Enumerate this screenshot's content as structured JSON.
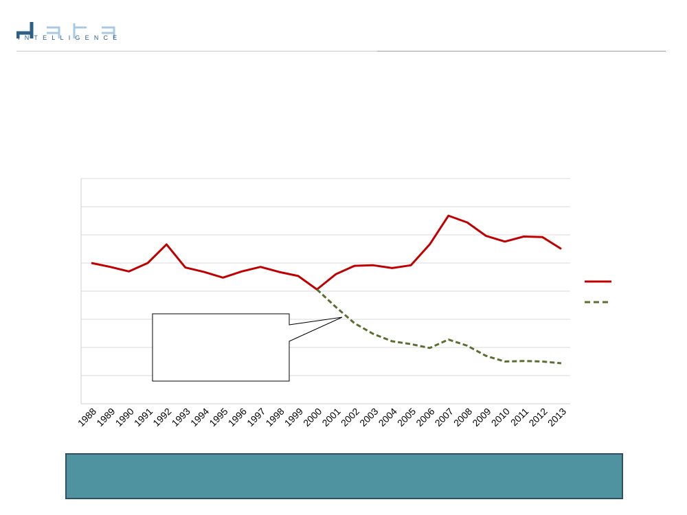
{
  "brand": {
    "logo_word": "data",
    "logo_tagline": "INTELLIGENCE",
    "colors": {
      "dark": "#2b5f86",
      "light": "#a9c9e0"
    }
  },
  "chart_data": {
    "type": "line",
    "title": "",
    "xlabel": "",
    "ylabel": "",
    "ylim": [
      0,
      8
    ],
    "gridlines": [
      1,
      2,
      3,
      4,
      5,
      6,
      7,
      8
    ],
    "grid": true,
    "legend_position": "right",
    "categories": [
      "1988",
      "1989",
      "1990",
      "1991",
      "1992",
      "1993",
      "1994",
      "1995",
      "1996",
      "1997",
      "1998",
      "1999",
      "2000",
      "2001",
      "2002",
      "2003",
      "2004",
      "2005",
      "2006",
      "2007",
      "2008",
      "2009",
      "2010",
      "2011",
      "2012",
      "2013"
    ],
    "series": [
      {
        "name": "",
        "color": "#c00000",
        "style": "solid",
        "values": [
          5.0,
          4.86,
          4.7,
          5.0,
          5.66,
          4.84,
          4.68,
          4.48,
          4.7,
          4.86,
          4.68,
          4.54,
          4.06,
          4.6,
          4.9,
          4.92,
          4.82,
          4.92,
          5.66,
          6.68,
          6.44,
          5.96,
          5.76,
          5.94,
          5.92,
          5.5
        ]
      },
      {
        "name": "",
        "color": "#5a6e2e",
        "style": "dashed",
        "values": [
          null,
          null,
          null,
          null,
          null,
          null,
          null,
          null,
          null,
          null,
          null,
          null,
          4.06,
          3.44,
          2.86,
          2.48,
          2.22,
          2.12,
          1.98,
          2.28,
          2.06,
          1.7,
          1.5,
          1.52,
          1.5,
          1.44
        ]
      }
    ],
    "annotations": [
      {
        "text": "",
        "points_to_category": "2001"
      }
    ]
  },
  "footer": {
    "box_color": "#5093a0",
    "border_color": "#2f4f63",
    "text": ""
  }
}
